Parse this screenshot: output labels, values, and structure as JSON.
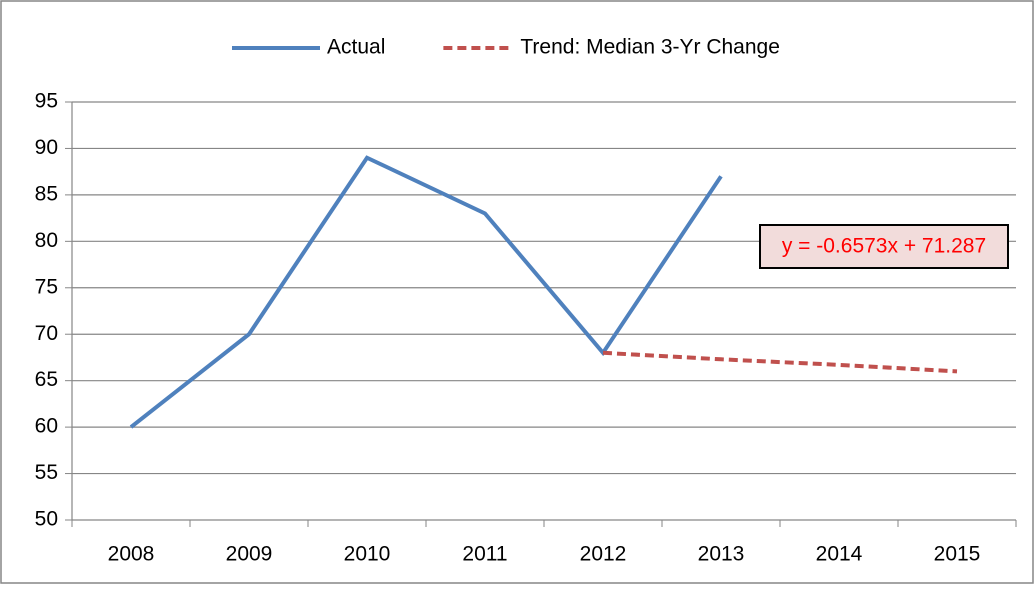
{
  "chart_data": {
    "type": "line",
    "categories": [
      "2008",
      "2009",
      "2010",
      "2011",
      "2012",
      "2013",
      "2014",
      "2015"
    ],
    "series": [
      {
        "name": "Actual",
        "color": "#4f81bd",
        "dash": false,
        "values": [
          60,
          70,
          89,
          83,
          68,
          87,
          null,
          null
        ]
      },
      {
        "name": "Trend: Median 3-Yr Change",
        "color": "#c0504d",
        "dash": true,
        "values": [
          null,
          null,
          null,
          null,
          68.0,
          67.3,
          66.7,
          66.0
        ]
      }
    ],
    "annotation": "y = -0.6573x + 71.287",
    "ylim": [
      50,
      95
    ],
    "yticks": [
      50,
      55,
      60,
      65,
      70,
      75,
      80,
      85,
      90,
      95
    ],
    "grid": true,
    "legend": "top"
  }
}
